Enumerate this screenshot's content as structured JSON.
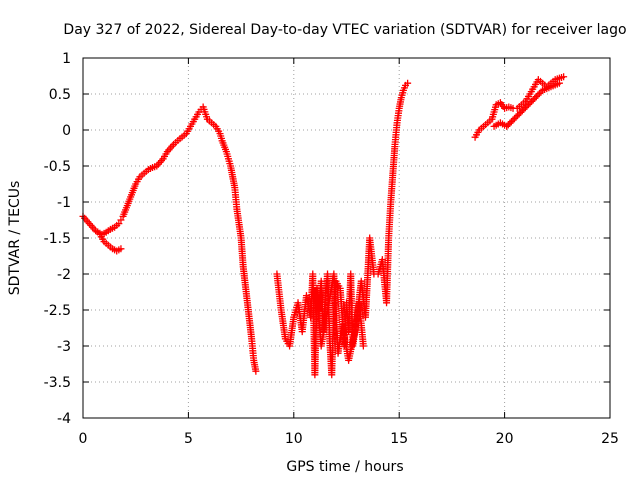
{
  "chart_data": {
    "type": "scatter",
    "title": "Day 327 of 2022, Sidereal Day-to-day VTEC variation (SDTVAR) for receiver lago",
    "xlabel": "GPS time / hours",
    "ylabel": "SDTVAR / TECUs",
    "xlim": [
      0,
      25
    ],
    "ylim": [
      -4,
      1
    ],
    "xticks": [
      0,
      5,
      10,
      15,
      20,
      25
    ],
    "xtick_labels": [
      "0",
      "5",
      "10",
      "15",
      "20",
      "25"
    ],
    "yticks": [
      1,
      0.5,
      0,
      -0.5,
      -1,
      -1.5,
      -2,
      -2.5,
      -3,
      -3.5,
      -4
    ],
    "ytick_labels": [
      "1",
      "0.5",
      "0",
      "-0.5",
      "-1",
      "-1.5",
      "-2",
      "-2.5",
      "-3",
      "-3.5",
      "-4"
    ],
    "grid": true,
    "marker": "+",
    "series": [
      {
        "name": "SDTVAR",
        "color": "#ff0000",
        "segments": [
          {
            "x": [
              0.0,
              0.3,
              0.6,
              0.9,
              1.1,
              1.3,
              1.5,
              1.7,
              1.8,
              1.9,
              2.1,
              2.3,
              2.5,
              2.7,
              2.9,
              3.1,
              3.3,
              3.5,
              3.8,
              4.0,
              4.3,
              4.6,
              4.9,
              5.1,
              5.3,
              5.5,
              5.7,
              5.9,
              6.1,
              6.3,
              6.5,
              6.6,
              6.8,
              7.0,
              7.2,
              7.3,
              7.5,
              7.6,
              7.8,
              8.0,
              8.1,
              8.2
            ],
            "y": [
              -1.2,
              -1.3,
              -1.4,
              -1.45,
              -1.42,
              -1.38,
              -1.35,
              -1.3,
              -1.25,
              -1.2,
              -1.05,
              -0.9,
              -0.75,
              -0.65,
              -0.6,
              -0.55,
              -0.52,
              -0.5,
              -0.4,
              -0.3,
              -0.2,
              -0.12,
              -0.05,
              0.05,
              0.15,
              0.25,
              0.32,
              0.15,
              0.1,
              0.05,
              -0.05,
              -0.15,
              -0.3,
              -0.5,
              -0.8,
              -1.1,
              -1.5,
              -1.9,
              -2.4,
              -2.9,
              -3.2,
              -3.35
            ]
          },
          {
            "x": [
              0.8,
              1.0,
              1.2,
              1.4,
              1.6,
              1.8
            ],
            "y": [
              -1.45,
              -1.55,
              -1.6,
              -1.65,
              -1.68,
              -1.65
            ]
          },
          {
            "x": [
              9.2,
              9.4,
              9.6,
              9.8,
              10.0,
              10.2,
              10.4,
              10.6,
              10.8,
              10.9,
              11.0,
              11.1,
              11.2,
              11.3,
              11.4,
              11.5,
              11.6,
              11.7,
              11.8,
              11.9,
              12.0,
              12.2,
              12.4,
              12.5,
              12.6,
              12.7,
              12.8,
              13.0,
              13.2,
              13.4,
              13.6,
              13.8,
              14.0,
              14.2,
              14.4,
              14.5,
              14.6,
              14.7,
              14.8,
              14.9,
              15.0,
              15.1,
              15.2,
              15.3,
              15.4
            ],
            "y": [
              -2.0,
              -2.5,
              -2.9,
              -3.0,
              -2.6,
              -2.4,
              -2.8,
              -2.3,
              -2.6,
              -2.0,
              -3.4,
              -2.2,
              -2.5,
              -2.1,
              -2.8,
              -2.3,
              -2.0,
              -2.9,
              -3.4,
              -2.5,
              -2.1,
              -2.2,
              -3.0,
              -2.4,
              -2.8,
              -2.0,
              -3.0,
              -2.6,
              -2.1,
              -2.6,
              -1.5,
              -2.0,
              -2.0,
              -1.8,
              -2.4,
              -1.5,
              -1.0,
              -0.6,
              -0.2,
              0.1,
              0.3,
              0.45,
              0.55,
              0.62,
              0.65
            ]
          },
          {
            "x": [
              11.1,
              11.3,
              11.6,
              11.9,
              12.1,
              12.3,
              12.6,
              12.9,
              13.1,
              13.3
            ],
            "y": [
              -2.3,
              -3.0,
              -2.5,
              -2.0,
              -3.1,
              -2.7,
              -3.2,
              -2.8,
              -2.4,
              -3.0
            ]
          },
          {
            "x": [
              18.6,
              18.8,
              19.0,
              19.2,
              19.4,
              19.6,
              19.8,
              20.0,
              20.2,
              20.4,
              20.6,
              20.8,
              21.0,
              21.2,
              21.4,
              21.6,
              21.8,
              22.0,
              22.2,
              22.4,
              22.6,
              22.8
            ],
            "y": [
              -0.1,
              0.0,
              0.05,
              0.1,
              0.15,
              0.35,
              0.38,
              0.3,
              0.32,
              0.3,
              0.3,
              0.35,
              0.4,
              0.5,
              0.6,
              0.7,
              0.65,
              0.6,
              0.65,
              0.7,
              0.72,
              0.74
            ]
          },
          {
            "x": [
              19.5,
              19.8,
              20.1,
              21.8,
              22.2,
              22.6
            ],
            "y": [
              0.05,
              0.1,
              0.05,
              0.55,
              0.6,
              0.65
            ]
          }
        ]
      }
    ]
  }
}
